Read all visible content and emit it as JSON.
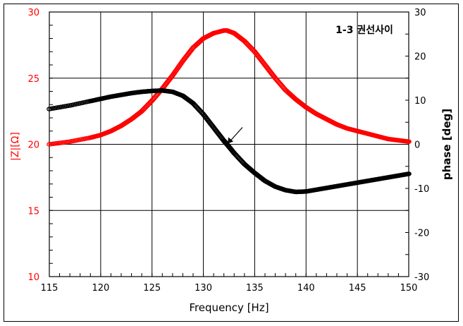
{
  "chart_data": {
    "type": "line",
    "title": "1-3 권선사이",
    "xlabel": "Frequency [Hz]",
    "ylabel_left": "|Z|[Ω]",
    "ylabel_right": "phase [deg]",
    "xlim": [
      115,
      150
    ],
    "ylim_left": [
      10,
      30
    ],
    "ylim_right": [
      -30,
      30
    ],
    "x_ticks": [
      "115",
      "120",
      "125",
      "130",
      "135",
      "140",
      "145",
      "150"
    ],
    "y_left_ticks": [
      "10",
      "15",
      "20",
      "25",
      "30"
    ],
    "y_right_ticks": [
      "-30",
      "-20",
      "-10",
      "0",
      "10",
      "20",
      "30"
    ],
    "grid": true,
    "series": [
      {
        "name": "|Z|",
        "axis": "left",
        "color": "#ff0000",
        "x": [
          115,
          117,
          119,
          120,
          121,
          122,
          123,
          124,
          125,
          126,
          127,
          128,
          129,
          130,
          131,
          132,
          132.3,
          133,
          134,
          135,
          136,
          137,
          138,
          139,
          140,
          141,
          142,
          143,
          144,
          145,
          146,
          147,
          148,
          149,
          150
        ],
        "values": [
          20.0,
          20.2,
          20.5,
          20.7,
          21.0,
          21.4,
          21.9,
          22.5,
          23.3,
          24.2,
          25.2,
          26.3,
          27.3,
          28.0,
          28.4,
          28.6,
          28.6,
          28.4,
          27.8,
          27.0,
          26.0,
          25.0,
          24.1,
          23.4,
          22.8,
          22.3,
          21.9,
          21.5,
          21.2,
          21.0,
          20.8,
          20.6,
          20.4,
          20.3,
          20.2
        ]
      },
      {
        "name": "phase",
        "axis": "right",
        "color": "#000000",
        "x": [
          115,
          117,
          119,
          120,
          121,
          122,
          123,
          124,
          125,
          126,
          127,
          128,
          129,
          130,
          131,
          132,
          132.3,
          133,
          134,
          135,
          136,
          137,
          138,
          139,
          140,
          141,
          142,
          143,
          144,
          145,
          146,
          147,
          148,
          149,
          150
        ],
        "values": [
          8.0,
          8.8,
          9.8,
          10.3,
          10.8,
          11.2,
          11.6,
          11.9,
          12.1,
          12.2,
          11.9,
          11.0,
          9.3,
          6.8,
          3.8,
          0.8,
          0.0,
          -2.0,
          -4.5,
          -6.5,
          -8.3,
          -9.6,
          -10.4,
          -10.8,
          -10.7,
          -10.3,
          -9.9,
          -9.5,
          -9.1,
          -8.7,
          -8.3,
          -7.9,
          -7.5,
          -7.1,
          -6.7
        ]
      }
    ],
    "annotations": [
      {
        "type": "arrow",
        "x": 132.3,
        "y_right": 0
      }
    ]
  }
}
